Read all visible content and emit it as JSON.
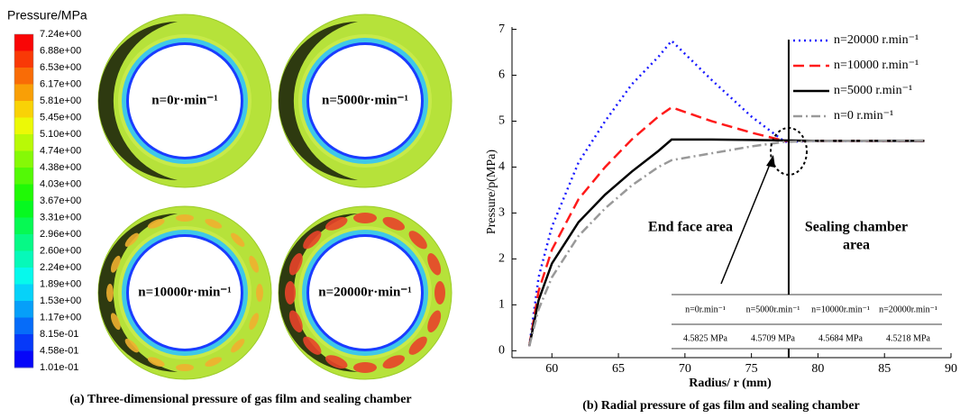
{
  "figure_a": {
    "colorbar_title": "Pressure/MPa",
    "colorbar_labels": [
      "7.24e+00",
      "6.88e+00",
      "6.53e+00",
      "6.17e+00",
      "5.81e+00",
      "5.45e+00",
      "5.10e+00",
      "4.74e+00",
      "4.38e+00",
      "4.03e+00",
      "3.67e+00",
      "3.31e+00",
      "2.96e+00",
      "2.60e+00",
      "2.24e+00",
      "1.89e+00",
      "1.53e+00",
      "1.17e+00",
      "8.15e-01",
      "4.58e-01",
      "1.01e-01"
    ],
    "panels": [
      "n=0r·min⁻¹",
      "n=5000r·min⁻¹",
      "n=10000r·min⁻¹",
      "n=20000r·min⁻¹"
    ],
    "caption": "(a) Three-dimensional pressure of gas film and sealing chamber"
  },
  "chart_data": {
    "type": "line",
    "caption": "(b) Radial pressure of gas film and sealing chamber",
    "xlabel": "Radius/ r (mm)",
    "ylabel": "Pressure/p(MPa)",
    "x": [
      58.3,
      59,
      60,
      62,
      64,
      66,
      68,
      69,
      72,
      75,
      77.5,
      80,
      88
    ],
    "series": [
      {
        "name": "n=20000 r.min⁻¹",
        "color": "#1a1aff",
        "dash": "dotted",
        "values": [
          0.1,
          1.6,
          2.7,
          4.1,
          5.0,
          5.8,
          6.4,
          6.75,
          5.9,
          5.1,
          4.55,
          4.57,
          4.57
        ]
      },
      {
        "name": "n=10000 r.min⁻¹",
        "color": "#ff1a1a",
        "dash": "dashed",
        "values": [
          0.1,
          1.3,
          2.2,
          3.3,
          4.0,
          4.6,
          5.1,
          5.3,
          5.0,
          4.75,
          4.57,
          4.57,
          4.57
        ]
      },
      {
        "name": "n=5000 r.min⁻¹",
        "color": "#000000",
        "dash": "solid",
        "values": [
          0.1,
          1.1,
          1.9,
          2.8,
          3.4,
          3.9,
          4.35,
          4.6,
          4.6,
          4.59,
          4.58,
          4.57,
          4.57
        ]
      },
      {
        "name": "n=0 r.min⁻¹",
        "color": "#999999",
        "dash": "dashdot",
        "values": [
          0.1,
          0.9,
          1.6,
          2.5,
          3.1,
          3.6,
          4.0,
          4.15,
          4.3,
          4.45,
          4.55,
          4.57,
          4.58
        ]
      }
    ],
    "divider_x": 77.8,
    "xlim": [
      57,
      90
    ],
    "ylim": [
      -0.15,
      7.05
    ],
    "xticks": [
      60,
      65,
      70,
      75,
      80,
      85,
      90
    ],
    "yticks": [
      0,
      1,
      2,
      3,
      4,
      5,
      6,
      7
    ],
    "annotations": {
      "end_face": "End face area",
      "sealing": [
        "Sealing chamber",
        "area"
      ]
    },
    "table": {
      "header": [
        "n=0r.min⁻¹",
        "n=5000r.min⁻¹",
        "n=10000r.min⁻¹",
        "n=20000r.min⁻¹"
      ],
      "values": [
        "4.5825 MPa",
        "4.5709 MPa",
        "4.5684 MPa",
        "4.5218 MPa"
      ]
    }
  }
}
